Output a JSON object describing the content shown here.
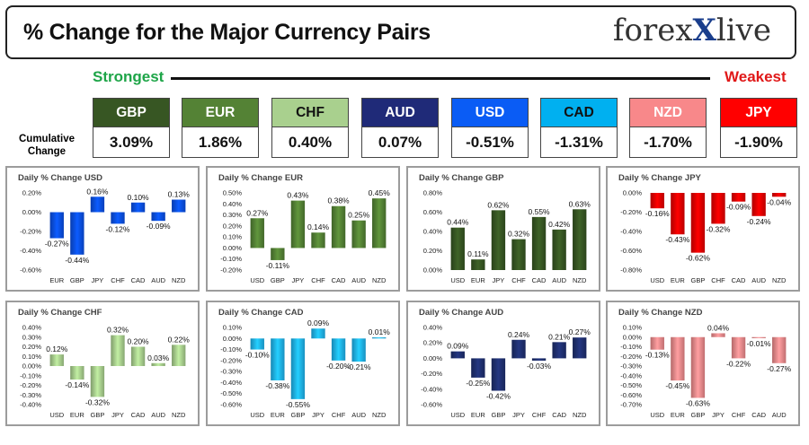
{
  "header": {
    "title": "% Change for the Major Currency Pairs",
    "logo_left": "forex",
    "logo_mark": "X",
    "logo_right": "live"
  },
  "strength": {
    "strongest_label": "Strongest",
    "weakest_label": "Weakest",
    "cumulative_label_1": "Cumulative",
    "cumulative_label_2": "Change",
    "tiles": [
      {
        "currency": "GBP",
        "value": "3.09%",
        "bg": "#375623",
        "fg": "#ffffff"
      },
      {
        "currency": "EUR",
        "value": "1.86%",
        "bg": "#548235",
        "fg": "#ffffff"
      },
      {
        "currency": "CHF",
        "value": "0.40%",
        "bg": "#a9d08e",
        "fg": "#111111"
      },
      {
        "currency": "AUD",
        "value": "0.07%",
        "bg": "#1f2a78",
        "fg": "#ffffff"
      },
      {
        "currency": "USD",
        "value": "-0.51%",
        "bg": "#0a5cf5",
        "fg": "#ffffff"
      },
      {
        "currency": "CAD",
        "value": "-1.31%",
        "bg": "#00b0f0",
        "fg": "#111111"
      },
      {
        "currency": "NZD",
        "value": "-1.70%",
        "bg": "#f8888a",
        "fg": "#ffffff"
      },
      {
        "currency": "JPY",
        "value": "-1.90%",
        "bg": "#ff0000",
        "fg": "#ffffff"
      }
    ]
  },
  "chart_data": [
    {
      "type": "bar",
      "title": "Daily % Change USD",
      "color": "#0a50e8",
      "categories": [
        "EUR",
        "GBP",
        "JPY",
        "CHF",
        "CAD",
        "AUD",
        "NZD"
      ],
      "values": [
        -0.27,
        -0.44,
        0.16,
        -0.12,
        0.1,
        -0.09,
        0.13
      ],
      "labels": [
        "-0.27%",
        "-0.44%",
        "0.16%",
        "-0.12%",
        "0.10%",
        "-0.09%",
        "0.13%"
      ],
      "ylim": [
        -0.6,
        0.2
      ],
      "yticks": [
        0.2,
        0.0,
        -0.2,
        -0.4,
        -0.6
      ],
      "ytick_labels": [
        "0.20%",
        "0.00%",
        "-0.20%",
        "-0.40%",
        "-0.60%"
      ]
    },
    {
      "type": "bar",
      "title": "Daily % Change EUR",
      "color": "#548235",
      "categories": [
        "USD",
        "GBP",
        "JPY",
        "CHF",
        "CAD",
        "AUD",
        "NZD"
      ],
      "values": [
        0.27,
        -0.11,
        0.43,
        0.14,
        0.38,
        0.25,
        0.45
      ],
      "labels": [
        "0.27%",
        "-0.11%",
        "0.43%",
        "0.14%",
        "0.38%",
        "0.25%",
        "0.45%"
      ],
      "ylim": [
        -0.2,
        0.5
      ],
      "yticks": [
        0.5,
        0.4,
        0.3,
        0.2,
        0.1,
        0.0,
        -0.1,
        -0.2
      ],
      "ytick_labels": [
        "0.50%",
        "0.40%",
        "0.30%",
        "0.20%",
        "0.10%",
        "0.00%",
        "-0.10%",
        "-0.20%"
      ]
    },
    {
      "type": "bar",
      "title": "Daily % Change GBP",
      "color": "#375623",
      "categories": [
        "USD",
        "EUR",
        "JPY",
        "CHF",
        "CAD",
        "AUD",
        "NZD"
      ],
      "values": [
        0.44,
        0.11,
        0.62,
        0.32,
        0.55,
        0.42,
        0.63
      ],
      "labels": [
        "0.44%",
        "0.11%",
        "0.62%",
        "0.32%",
        "0.55%",
        "0.42%",
        "0.63%"
      ],
      "ylim": [
        0.0,
        0.8
      ],
      "yticks": [
        0.8,
        0.6,
        0.4,
        0.2,
        0.0
      ],
      "ytick_labels": [
        "0.80%",
        "0.60%",
        "0.40%",
        "0.20%",
        "0.00%"
      ]
    },
    {
      "type": "bar",
      "title": "Daily % Change JPY",
      "color": "#e80000",
      "categories": [
        "USD",
        "EUR",
        "GBP",
        "CHF",
        "CAD",
        "AUD",
        "NZD"
      ],
      "values": [
        -0.16,
        -0.43,
        -0.62,
        -0.32,
        -0.09,
        -0.24,
        -0.04
      ],
      "labels": [
        "-0.16%",
        "-0.43%",
        "-0.62%",
        "-0.32%",
        "-0.09%",
        "-0.24%",
        "-0.04%"
      ],
      "ylim": [
        -0.8,
        0.0
      ],
      "yticks": [
        0.0,
        -0.2,
        -0.4,
        -0.6,
        -0.8
      ],
      "ytick_labels": [
        "0.00%",
        "-0.20%",
        "-0.40%",
        "-0.60%",
        "-0.80%"
      ]
    },
    {
      "type": "bar",
      "title": "Daily % Change CHF",
      "color": "#a9d08e",
      "categories": [
        "USD",
        "EUR",
        "GBP",
        "JPY",
        "CAD",
        "AUD",
        "NZD"
      ],
      "values": [
        0.12,
        -0.14,
        -0.32,
        0.32,
        0.2,
        0.03,
        0.22
      ],
      "labels": [
        "0.12%",
        "-0.14%",
        "-0.32%",
        "0.32%",
        "0.20%",
        "0.03%",
        "0.22%"
      ],
      "ylim": [
        -0.4,
        0.4
      ],
      "yticks": [
        0.4,
        0.3,
        0.2,
        0.1,
        0.0,
        -0.1,
        -0.2,
        -0.3,
        -0.4
      ],
      "ytick_labels": [
        "0.40%",
        "0.30%",
        "0.20%",
        "0.10%",
        "0.00%",
        "-0.10%",
        "-0.20%",
        "-0.30%",
        "-0.40%"
      ]
    },
    {
      "type": "bar",
      "title": "Daily % Change CAD",
      "color": "#1fb4f0",
      "categories": [
        "USD",
        "EUR",
        "GBP",
        "JPY",
        "CHF",
        "AUD",
        "NZD"
      ],
      "values": [
        -0.1,
        -0.38,
        -0.55,
        0.09,
        -0.2,
        -0.21,
        0.01
      ],
      "labels": [
        "-0.10%",
        "-0.38%",
        "-0.55%",
        "0.09%",
        "-0.20%",
        "-0.21%",
        "0.01%"
      ],
      "ylim": [
        -0.6,
        0.1
      ],
      "yticks": [
        0.1,
        0.0,
        -0.1,
        -0.2,
        -0.3,
        -0.4,
        -0.5,
        -0.6
      ],
      "ytick_labels": [
        "0.10%",
        "0.00%",
        "-0.10%",
        "-0.20%",
        "-0.30%",
        "-0.40%",
        "-0.50%",
        "-0.60%"
      ]
    },
    {
      "type": "bar",
      "title": "Daily % Change AUD",
      "color": "#1f3070",
      "categories": [
        "USD",
        "EUR",
        "GBP",
        "JPY",
        "CHF",
        "CAD",
        "NZD"
      ],
      "values": [
        0.09,
        -0.25,
        -0.42,
        0.24,
        -0.03,
        0.21,
        0.27
      ],
      "labels": [
        "0.09%",
        "-0.25%",
        "-0.42%",
        "0.24%",
        "-0.03%",
        "0.21%",
        "0.27%"
      ],
      "ylim": [
        -0.6,
        0.4
      ],
      "yticks": [
        0.4,
        0.2,
        0.0,
        -0.2,
        -0.4,
        -0.6
      ],
      "ytick_labels": [
        "0.40%",
        "0.20%",
        "0.00%",
        "-0.20%",
        "-0.40%",
        "-0.60%"
      ]
    },
    {
      "type": "bar",
      "title": "Daily % Change NZD",
      "color": "#f08a8c",
      "categories": [
        "USD",
        "EUR",
        "GBP",
        "JPY",
        "CHF",
        "CAD",
        "AUD"
      ],
      "values": [
        -0.13,
        -0.45,
        -0.63,
        0.04,
        -0.22,
        -0.01,
        -0.27
      ],
      "labels": [
        "-0.13%",
        "-0.45%",
        "-0.63%",
        "0.04%",
        "-0.22%",
        "-0.01%",
        "-0.27%"
      ],
      "ylim": [
        -0.7,
        0.1
      ],
      "yticks": [
        0.1,
        0.0,
        -0.1,
        -0.2,
        -0.3,
        -0.4,
        -0.5,
        -0.6,
        -0.7
      ],
      "ytick_labels": [
        "0.10%",
        "0.00%",
        "-0.10%",
        "-0.20%",
        "-0.30%",
        "-0.40%",
        "-0.50%",
        "-0.60%",
        "-0.70%"
      ]
    }
  ]
}
